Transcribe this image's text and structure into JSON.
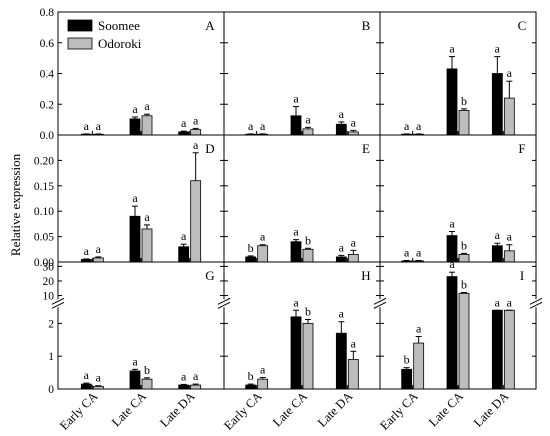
{
  "figure": {
    "ylabel": "Relative expression",
    "legend": [
      {
        "name": "Soomee",
        "color": "#000000"
      },
      {
        "name": "Odoroki",
        "color": "#bdbdbd"
      }
    ],
    "legend_placement": "top-left"
  },
  "chart_data": [
    {
      "panel": "A",
      "type": "bar",
      "categories": [
        "Early CA",
        "Late CA",
        "Late DA"
      ],
      "ylim": [
        0,
        0.8
      ],
      "yticks": [
        0.0,
        0.2,
        0.4,
        0.6,
        0.8
      ],
      "ytick_labels": [
        "0.0",
        "0.2",
        "0.4",
        "0.6",
        "0.8"
      ],
      "series": [
        {
          "name": "Soomee",
          "values": [
            0.005,
            0.105,
            0.02
          ],
          "errors": [
            0.002,
            0.012,
            0.005
          ],
          "labels": [
            "a",
            "a",
            "a"
          ]
        },
        {
          "name": "Odoroki",
          "values": [
            0.005,
            0.125,
            0.035
          ],
          "errors": [
            0.002,
            0.01,
            0.008
          ],
          "labels": [
            "a",
            "a",
            "a"
          ]
        }
      ]
    },
    {
      "panel": "B",
      "type": "bar",
      "categories": [
        "Early CA",
        "Late CA",
        "Late DA"
      ],
      "ylim": [
        0,
        0.8
      ],
      "yticks": [
        0.0,
        0.2,
        0.4,
        0.6,
        0.8
      ],
      "ytick_labels": [],
      "series": [
        {
          "name": "Soomee",
          "values": [
            0.005,
            0.125,
            0.07
          ],
          "errors": [
            0.002,
            0.06,
            0.015
          ],
          "labels": [
            "a",
            "a",
            "a"
          ]
        },
        {
          "name": "Odoroki",
          "values": [
            0.005,
            0.04,
            0.02
          ],
          "errors": [
            0.002,
            0.01,
            0.01
          ],
          "labels": [
            "a",
            "a",
            "a"
          ]
        }
      ]
    },
    {
      "panel": "C",
      "type": "bar",
      "categories": [
        "Early CA",
        "Late CA",
        "Late DA"
      ],
      "ylim": [
        0,
        0.8
      ],
      "yticks": [
        0.0,
        0.2,
        0.4,
        0.6,
        0.8
      ],
      "ytick_labels": [],
      "series": [
        {
          "name": "Soomee",
          "values": [
            0.005,
            0.43,
            0.4
          ],
          "errors": [
            0.002,
            0.08,
            0.11
          ],
          "labels": [
            "a",
            "a",
            "a"
          ]
        },
        {
          "name": "Odoroki",
          "values": [
            0.005,
            0.16,
            0.24
          ],
          "errors": [
            0.002,
            0.01,
            0.11
          ],
          "labels": [
            "a",
            "b",
            "a"
          ]
        }
      ]
    },
    {
      "panel": "D",
      "type": "bar",
      "categories": [
        "Early CA",
        "Late CA",
        "Late DA"
      ],
      "ylim": [
        0,
        0.25
      ],
      "yticks": [
        0.0,
        0.05,
        0.1,
        0.15,
        0.2
      ],
      "ytick_labels": [
        "0.00",
        "0.05",
        "0.10",
        "0.15",
        "0.20"
      ],
      "series": [
        {
          "name": "Soomee",
          "values": [
            0.005,
            0.09,
            0.03
          ],
          "errors": [
            0.001,
            0.02,
            0.005
          ],
          "labels": [
            "a",
            "a",
            "a"
          ]
        },
        {
          "name": "Odoroki",
          "values": [
            0.008,
            0.065,
            0.16
          ],
          "errors": [
            0.002,
            0.008,
            0.055
          ],
          "labels": [
            "a",
            "a",
            "a"
          ]
        }
      ]
    },
    {
      "panel": "E",
      "type": "bar",
      "categories": [
        "Early CA",
        "Late CA",
        "Late DA"
      ],
      "ylim": [
        0,
        0.25
      ],
      "yticks": [
        0.0,
        0.05,
        0.1,
        0.15,
        0.2
      ],
      "ytick_labels": [],
      "series": [
        {
          "name": "Soomee",
          "values": [
            0.01,
            0.04,
            0.01
          ],
          "errors": [
            0.002,
            0.004,
            0.003
          ],
          "labels": [
            "b",
            "a",
            "a"
          ]
        },
        {
          "name": "Odoroki",
          "values": [
            0.032,
            0.025,
            0.015
          ],
          "errors": [
            0.002,
            0.002,
            0.008
          ],
          "labels": [
            "a",
            "b",
            "a"
          ]
        }
      ]
    },
    {
      "panel": "F",
      "type": "bar",
      "categories": [
        "Early CA",
        "Late CA",
        "Late DA"
      ],
      "ylim": [
        0,
        0.25
      ],
      "yticks": [
        0.0,
        0.05,
        0.1,
        0.15,
        0.2
      ],
      "ytick_labels": [],
      "series": [
        {
          "name": "Soomee",
          "values": [
            0.002,
            0.052,
            0.032
          ],
          "errors": [
            0.001,
            0.008,
            0.005
          ],
          "labels": [
            "a",
            "a",
            "a"
          ]
        },
        {
          "name": "Odoroki",
          "values": [
            0.002,
            0.015,
            0.022
          ],
          "errors": [
            0.001,
            0.002,
            0.012
          ],
          "labels": [
            "a",
            "b",
            "a"
          ]
        }
      ]
    },
    {
      "panel": "G",
      "type": "bar",
      "broken_axis": true,
      "categories": [
        "Early CA",
        "Late CA",
        "Late DA"
      ],
      "yticks": [
        0,
        1,
        2,
        10,
        20,
        30
      ],
      "ytick_labels": [
        "0",
        "1",
        "2",
        "10",
        "20",
        "30"
      ],
      "series": [
        {
          "name": "Soomee",
          "values": [
            0.15,
            0.55,
            0.12
          ],
          "errors": [
            0.03,
            0.05,
            0.02
          ],
          "labels": [
            "a",
            "a",
            "a"
          ]
        },
        {
          "name": "Odoroki",
          "values": [
            0.08,
            0.3,
            0.12
          ],
          "errors": [
            0.02,
            0.04,
            0.03
          ],
          "labels": [
            "a",
            "b",
            "a"
          ]
        }
      ]
    },
    {
      "panel": "H",
      "type": "bar",
      "broken_axis": true,
      "categories": [
        "Early CA",
        "Late CA",
        "Late DA"
      ],
      "yticks": [
        0,
        1,
        2,
        10,
        20,
        30
      ],
      "ytick_labels": [],
      "series": [
        {
          "name": "Soomee",
          "values": [
            0.12,
            2.2,
            1.7
          ],
          "errors": [
            0.03,
            0.25,
            0.35
          ],
          "labels": [
            "b",
            "a",
            "a"
          ]
        },
        {
          "name": "Odoroki",
          "values": [
            0.3,
            2.0,
            0.9
          ],
          "errors": [
            0.05,
            0.12,
            0.25
          ],
          "labels": [
            "a",
            "b",
            "a"
          ]
        }
      ]
    },
    {
      "panel": "I",
      "type": "bar",
      "broken_axis": true,
      "categories": [
        "Early CA",
        "Late CA",
        "Late DA"
      ],
      "yticks": [
        0,
        1,
        2,
        10,
        20,
        30
      ],
      "ytick_labels": [],
      "series": [
        {
          "name": "Soomee",
          "values": [
            0.6,
            23.0,
            8.0
          ],
          "errors": [
            0.05,
            3.0,
            1.0
          ],
          "labels": [
            "b",
            "a",
            "a"
          ]
        },
        {
          "name": "Odoroki",
          "values": [
            1.4,
            11.5,
            6.5
          ],
          "errors": [
            0.2,
            0.6,
            0.8
          ],
          "labels": [
            "a",
            "b",
            "a"
          ]
        }
      ]
    }
  ]
}
